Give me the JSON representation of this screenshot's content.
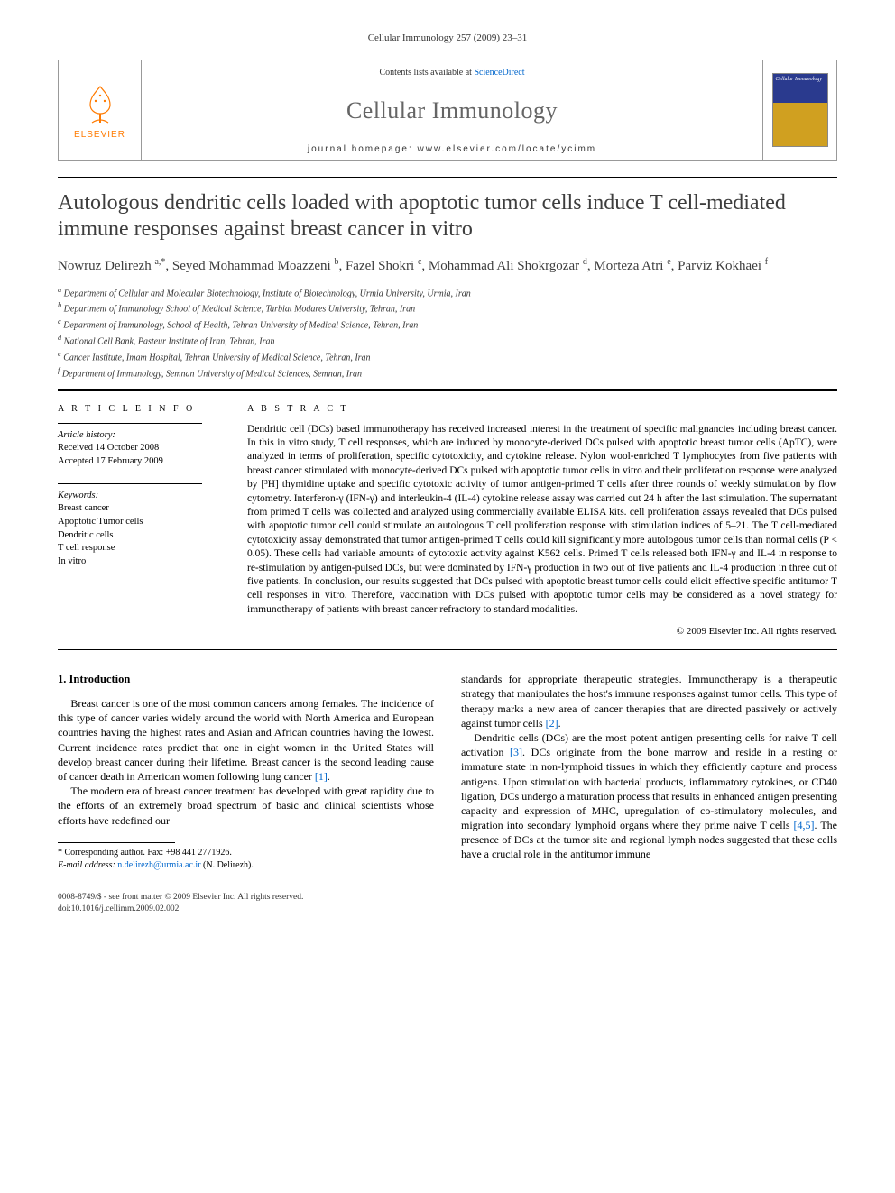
{
  "running_header": "Cellular Immunology 257 (2009) 23–31",
  "banner": {
    "publisher_label": "ELSEVIER",
    "contents_prefix": "Contents lists available at ",
    "contents_link": "ScienceDirect",
    "journal_name": "Cellular Immunology",
    "homepage_prefix": "journal homepage: ",
    "homepage_url": "www.elsevier.com/locate/ycimm",
    "cover_text": "Cellular Immunology"
  },
  "title": "Autologous dendritic cells loaded with apoptotic tumor cells induce T cell-mediated immune responses against breast cancer in vitro",
  "authors_html": "Nowruz Delirezh <sup>a,*</sup>, Seyed Mohammad Moazzeni <sup>b</sup>, Fazel Shokri <sup>c</sup>, Mohammad Ali Shokrgozar <sup>d</sup>, Morteza Atri <sup>e</sup>, Parviz Kokhaei <sup>f</sup>",
  "affiliations": [
    "a Department of Cellular and Molecular Biotechnology, Institute of Biotechnology, Urmia University, Urmia, Iran",
    "b Department of Immunology School of Medical Science, Tarbiat Modares University, Tehran, Iran",
    "c Department of Immunology, School of Health, Tehran University of Medical Science, Tehran, Iran",
    "d National Cell Bank, Pasteur Institute of Iran, Tehran, Iran",
    "e Cancer Institute, Imam Hospital, Tehran University of Medical Science, Tehran, Iran",
    "f Department of Immunology, Semnan University of Medical Sciences, Semnan, Iran"
  ],
  "info": {
    "heading": "A R T I C L E   I N F O",
    "history_label": "Article history:",
    "received": "Received 14 October 2008",
    "accepted": "Accepted 17 February 2009",
    "keywords_label": "Keywords:",
    "keywords": [
      "Breast cancer",
      "Apoptotic Tumor cells",
      "Dendritic cells",
      "T cell response",
      "In vitro"
    ]
  },
  "abstract": {
    "heading": "A B S T R A C T",
    "body": "Dendritic cell (DCs) based immunotherapy has received increased interest in the treatment of specific malignancies including breast cancer. In this in vitro study, T cell responses, which are induced by monocyte-derived DCs pulsed with apoptotic breast tumor cells (ApTC), were analyzed in terms of proliferation, specific cytotoxicity, and cytokine release. Nylon wool-enriched T lymphocytes from five patients with breast cancer stimulated with monocyte-derived DCs pulsed with apoptotic tumor cells in vitro and their proliferation response were analyzed by [³H] thymidine uptake and specific cytotoxic activity of tumor antigen-primed T cells after three rounds of weekly stimulation by flow cytometry. Interferon-γ (IFN-γ) and interleukin-4 (IL-4) cytokine release assay was carried out 24 h after the last stimulation. The supernatant from primed T cells was collected and analyzed using commercially available ELISA kits. cell proliferation assays revealed that DCs pulsed with apoptotic tumor cell could stimulate an autologous T cell proliferation response with stimulation indices of 5–21. The T cell-mediated cytotoxicity assay demonstrated that tumor antigen-primed T cells could kill significantly more autologous tumor cells than normal cells (P < 0.05). These cells had variable amounts of cytotoxic activity against K562 cells. Primed T cells released both IFN-γ and IL-4 in response to re-stimulation by antigen-pulsed DCs, but were dominated by IFN-γ production in two out of five patients and IL-4 production in three out of five patients. In conclusion, our results suggested that DCs pulsed with apoptotic breast tumor cells could elicit effective specific antitumor T cell responses in vitro. Therefore, vaccination with DCs pulsed with apoptotic tumor cells may be considered as a novel strategy for immunotherapy of patients with breast cancer refractory to standard modalities.",
    "copyright": "© 2009 Elsevier Inc. All rights reserved."
  },
  "section1": {
    "heading": "1. Introduction",
    "p1": "Breast cancer is one of the most common cancers among females. The incidence of this type of cancer varies widely around the world with North America and European countries having the highest rates and Asian and African countries having the lowest. Current incidence rates predict that one in eight women in the United States will develop breast cancer during their lifetime. Breast cancer is the second leading cause of cancer death in American women following lung cancer ",
    "p1_ref": "[1]",
    "p1_end": ".",
    "p2": "The modern era of breast cancer treatment has developed with great rapidity due to the efforts of an extremely broad spectrum of basic and clinical scientists whose efforts have redefined our",
    "p3": "standards for appropriate therapeutic strategies. Immunotherapy is a therapeutic strategy that manipulates the host's immune responses against tumor cells. This type of therapy marks a new area of cancer therapies that are directed passively or actively against tumor cells ",
    "p3_ref": "[2]",
    "p3_end": ".",
    "p4a": "Dendritic cells (DCs) are the most potent antigen presenting cells for naive T cell activation ",
    "p4_ref1": "[3]",
    "p4b": ". DCs originate from the bone marrow and reside in a resting or immature state in non-lymphoid tissues in which they efficiently capture and process antigens. Upon stimulation with bacterial products, inflammatory cytokines, or CD40 ligation, DCs undergo a maturation process that results in enhanced antigen presenting capacity and expression of MHC, upregulation of co-stimulatory molecules, and migration into secondary lymphoid organs where they prime naive T cells ",
    "p4_ref2": "[4,5]",
    "p4c": ". The presence of DCs at the tumor site and regional lymph nodes suggested that these cells have a crucial role in the antitumor immune"
  },
  "footnote": {
    "corr_label": "* Corresponding author. Fax: +98 441 2771926.",
    "email_label": "E-mail address: ",
    "email": "n.delirezh@urmia.ac.ir",
    "email_suffix": " (N. Delirezh)."
  },
  "footer": {
    "line1": "0008-8749/$ - see front matter © 2009 Elsevier Inc. All rights reserved.",
    "line2": "doi:10.1016/j.cellimm.2009.02.002"
  },
  "colors": {
    "link": "#0066cc",
    "publisher_orange": "#ff7a00",
    "journal_gray": "#656565",
    "text": "#000000"
  }
}
